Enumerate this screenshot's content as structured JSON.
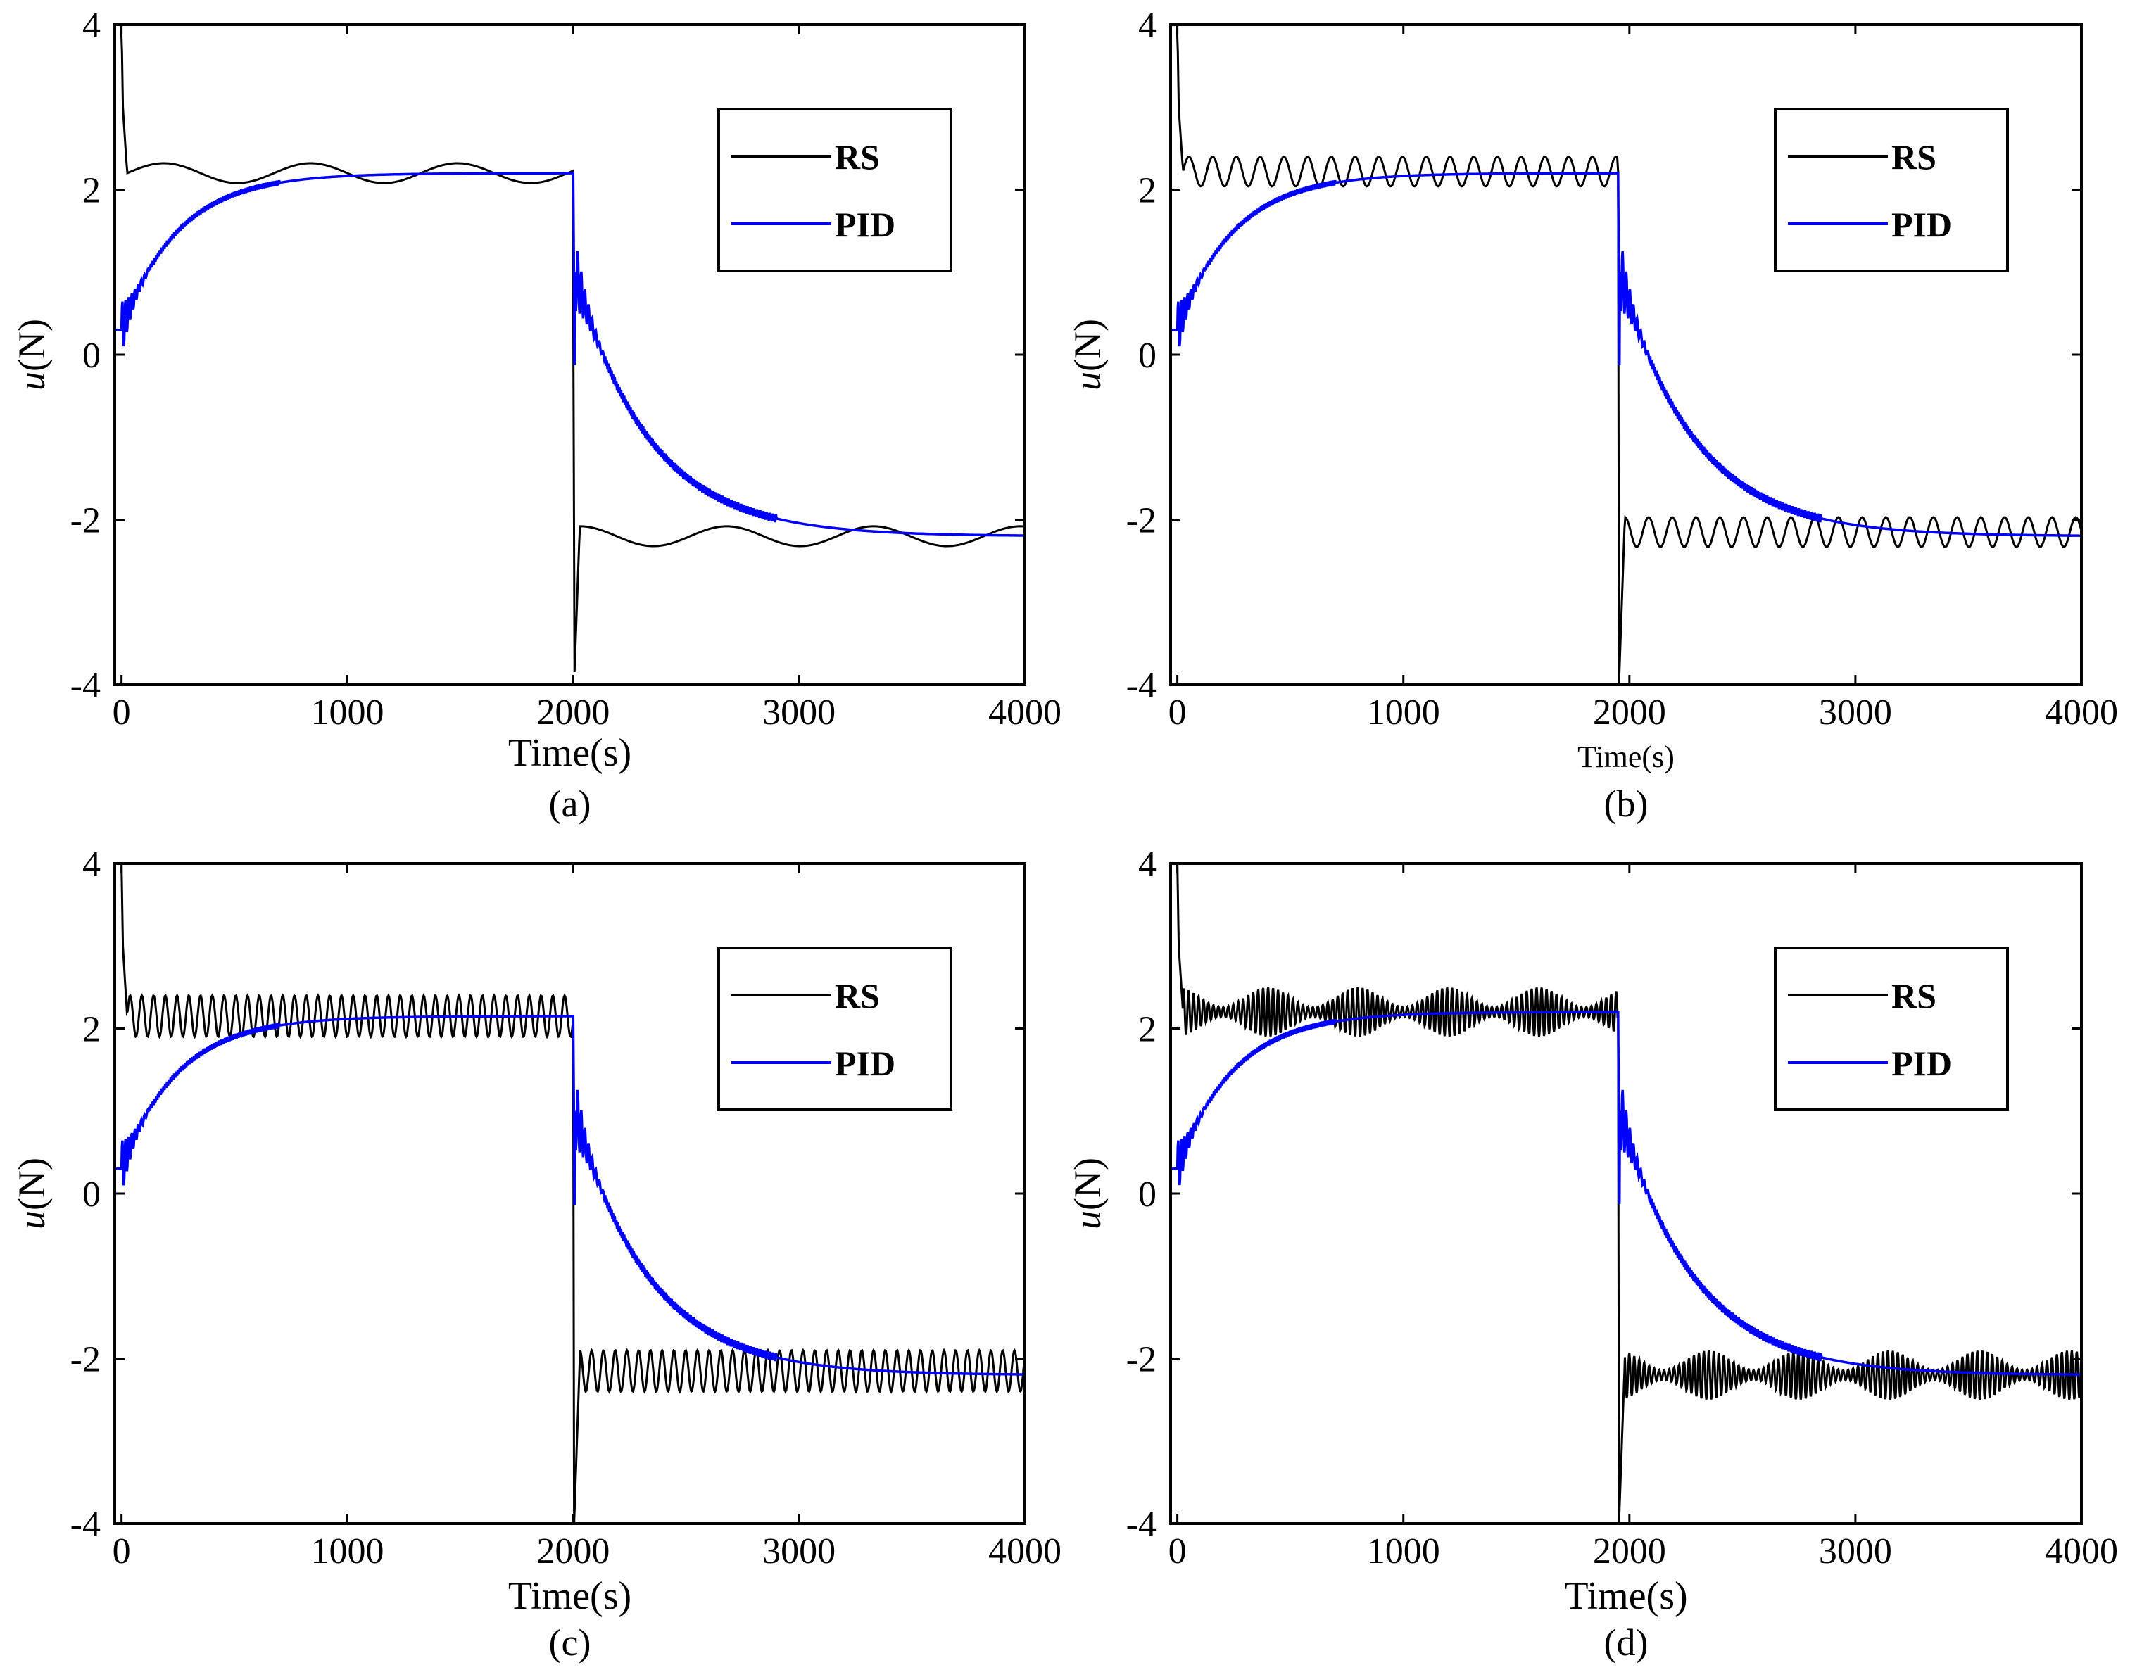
{
  "colors": {
    "rs": "#000000",
    "pid": "#0000ff",
    "axis": "#000000",
    "background": "#ffffff"
  },
  "chart_data": [
    {
      "type": "line",
      "panel": "(a)",
      "caption": "(a)",
      "xlabel": "Time(s)",
      "ylabel_italic": "u",
      "ylabel_unit": "(N)",
      "xlim": [
        -30,
        4000
      ],
      "ylim": [
        -4,
        4
      ],
      "xticks": [
        0,
        1000,
        2000,
        3000,
        4000
      ],
      "yticks": [
        -4,
        -2,
        0,
        2,
        4
      ],
      "xtick_labels": [
        "0",
        "1000",
        "2000",
        "3000",
        "4000"
      ],
      "ytick_labels": [
        "-4",
        "-2",
        "0",
        "2",
        "4"
      ],
      "legend": {
        "position": "top-right",
        "entries": [
          "RS",
          "PID"
        ]
      },
      "series": [
        {
          "name": "RS",
          "color": "#000000",
          "description": "spike to 4 at t=0, settles near 2.2 with slow oscillation amplitude 0.12 (period ~650 s); drops to -4 at t=2000, then oscillates around -2.2",
          "steady_high": 2.2,
          "steady_low": -2.2,
          "osc_amplitude": 0.12,
          "osc_period": 650,
          "switch_time": 2000,
          "peak": 4,
          "trough": -4
        },
        {
          "name": "PID",
          "color": "#0000ff",
          "description": "rises from ~0.3 to 2.2 exponentially (tau ~250 s) with initial ripple; at t=2000 jumps to ~1 then decays to -2.2 (tau ~330 s)",
          "start": 0.3,
          "steady_high": 2.2,
          "steady_low": -2.2,
          "tau_rise": 250,
          "tau_fall": 330,
          "switch_time": 2000
        }
      ]
    },
    {
      "type": "line",
      "panel": "(b)",
      "caption": "(b)",
      "xlabel": "Time(s)",
      "ylabel_italic": "u",
      "ylabel_unit": "(N)",
      "xlim": [
        -30,
        4000
      ],
      "ylim": [
        -4,
        4
      ],
      "xticks": [
        0,
        1000,
        2000,
        3000,
        4000
      ],
      "yticks": [
        -4,
        -2,
        0,
        2,
        4
      ],
      "xtick_labels": [
        "0",
        "1000",
        "2000",
        "3000",
        "4000"
      ],
      "ytick_labels": [
        "-4",
        "-2",
        "0",
        "2",
        "4"
      ],
      "legend": {
        "position": "top-right",
        "entries": [
          "RS",
          "PID"
        ]
      },
      "series": [
        {
          "name": "RS",
          "color": "#000000",
          "description": "settles near 2.2 with oscillation amplitude 0.18 (period ~105 s); drops to -4 at t=1950, then oscillates around -2.15",
          "steady_high": 2.22,
          "steady_low": -2.15,
          "osc_amplitude": 0.18,
          "osc_period": 105,
          "switch_time": 1950,
          "peak": 4,
          "trough": -4
        },
        {
          "name": "PID",
          "color": "#0000ff",
          "description": "rises to 2.2 then after switch decays to -2.2",
          "start": 0.3,
          "steady_high": 2.2,
          "steady_low": -2.2,
          "tau_rise": 250,
          "tau_fall": 330,
          "switch_time": 1950
        }
      ]
    },
    {
      "type": "line",
      "panel": "(c)",
      "caption": "(c)",
      "xlabel": "Time(s)",
      "ylabel_italic": "u",
      "ylabel_unit": "(N)",
      "xlim": [
        -30,
        4000
      ],
      "ylim": [
        -4,
        4
      ],
      "xticks": [
        0,
        1000,
        2000,
        3000,
        4000
      ],
      "yticks": [
        -4,
        -2,
        0,
        2,
        4
      ],
      "xtick_labels": [
        "0",
        "1000",
        "2000",
        "3000",
        "4000"
      ],
      "ytick_labels": [
        "-4",
        "-2",
        "0",
        "2",
        "4"
      ],
      "legend": {
        "position": "top-right",
        "entries": [
          "RS",
          "PID"
        ]
      },
      "series": [
        {
          "name": "RS",
          "color": "#000000",
          "description": "settles near 2.15 with oscillation amplitude 0.25 (period ~52 s); drops to -4 at t=2000, then oscillates around -2.15",
          "steady_high": 2.15,
          "steady_low": -2.15,
          "osc_amplitude": 0.25,
          "osc_period": 52,
          "switch_time": 2000,
          "peak": 4,
          "trough": -4
        },
        {
          "name": "PID",
          "color": "#0000ff",
          "description": "rises to 2.15 then after switch decays to -2.2",
          "start": 0.3,
          "steady_high": 2.15,
          "steady_low": -2.2,
          "tau_rise": 250,
          "tau_fall": 330,
          "switch_time": 2000
        }
      ]
    },
    {
      "type": "line",
      "panel": "(d)",
      "caption": "(d)",
      "xlabel": "Time(s)",
      "ylabel_italic": "u",
      "ylabel_unit": "(N)",
      "xlim": [
        -30,
        4000
      ],
      "ylim": [
        -4,
        4
      ],
      "xticks": [
        0,
        1000,
        2000,
        3000,
        4000
      ],
      "yticks": [
        -4,
        -2,
        0,
        2,
        4
      ],
      "xtick_labels": [
        "0",
        "1000",
        "2000",
        "3000",
        "4000"
      ],
      "ytick_labels": [
        "-4",
        "-2",
        "0",
        "2",
        "4"
      ],
      "legend": {
        "position": "top-right",
        "entries": [
          "RS",
          "PID"
        ]
      },
      "series": [
        {
          "name": "RS",
          "color": "#000000",
          "description": "dense high-frequency oscillation around 2.2 (amplitude ~0.3, beating); drops to -4 at t=1950, then dense oscillation around -2.2",
          "steady_high": 2.2,
          "steady_low": -2.2,
          "osc_amplitude": 0.3,
          "osc_period": 22,
          "switch_time": 1950,
          "peak": 4,
          "trough": -4
        },
        {
          "name": "PID",
          "color": "#0000ff",
          "description": "rises to 2.2 then after switch decays to -2.2",
          "start": 0.3,
          "steady_high": 2.2,
          "steady_low": -2.2,
          "tau_rise": 250,
          "tau_fall": 330,
          "switch_time": 1950
        }
      ]
    }
  ]
}
